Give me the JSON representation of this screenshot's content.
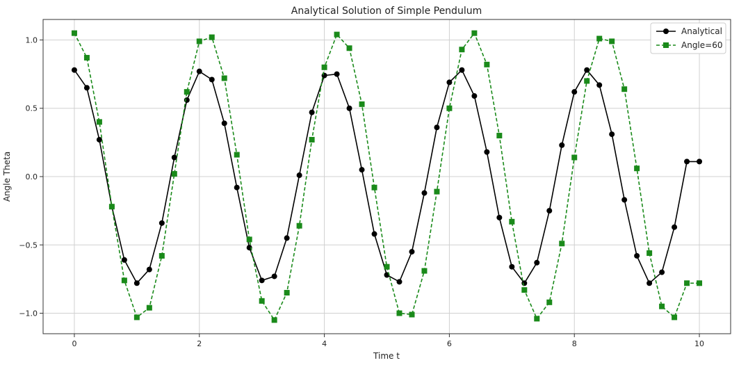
{
  "chart_data": {
    "type": "line",
    "title": "Analytical Solution of Simple Pendulum",
    "xlabel": "Time t",
    "ylabel": "Angle Theta",
    "xlim": [
      -0.5,
      10.5
    ],
    "ylim": [
      -1.15,
      1.15
    ],
    "xticks": [
      0,
      2,
      4,
      6,
      8,
      10
    ],
    "xtick_labels": [
      "0",
      "2",
      "4",
      "6",
      "8",
      "10"
    ],
    "yticks": [
      1.0,
      0.5,
      0.0,
      -0.5,
      -1.0
    ],
    "ytick_labels": [
      "1.0",
      "0.5",
      "0.0",
      "−0.5",
      "−1.0"
    ],
    "grid": true,
    "legend_position": "top-right",
    "series": [
      {
        "name": "Analytical",
        "color": "#000000",
        "line_style": "solid",
        "marker": "circle",
        "x": [
          0.0,
          0.2,
          0.4,
          0.6,
          0.8,
          1.0,
          1.2,
          1.4,
          1.6,
          1.8,
          2.0,
          2.2,
          2.4,
          2.6,
          2.8,
          3.0,
          3.2,
          3.4,
          3.6,
          3.8,
          4.0,
          4.2,
          4.4,
          4.6,
          4.8,
          5.0,
          5.2,
          5.4,
          5.6,
          5.8,
          6.0,
          6.2,
          6.4,
          6.6,
          6.8,
          7.0,
          7.2,
          7.4,
          7.6,
          7.8,
          8.0,
          8.2,
          8.4,
          8.6,
          8.8,
          9.0,
          9.2,
          9.4,
          9.6,
          9.8,
          10.0
        ],
        "y": [
          0.78,
          0.65,
          0.27,
          -0.22,
          -0.61,
          -0.78,
          -0.68,
          -0.34,
          0.14,
          0.56,
          0.77,
          0.71,
          0.39,
          -0.08,
          -0.52,
          -0.76,
          -0.73,
          -0.45,
          0.01,
          0.47,
          0.74,
          0.75,
          0.5,
          0.05,
          -0.42,
          -0.72,
          -0.77,
          -0.55,
          -0.12,
          0.36,
          0.69,
          0.78,
          0.59,
          0.18,
          -0.3,
          -0.66,
          -0.78,
          -0.63,
          -0.25,
          0.23,
          0.62,
          0.78,
          0.67,
          0.31,
          -0.17,
          -0.58,
          -0.78,
          -0.7,
          -0.37,
          0.11,
          0.11
        ]
      },
      {
        "name": "Angle=60",
        "color": "#1a8a1a",
        "line_style": "dashed",
        "marker": "square",
        "x": [
          0.0,
          0.2,
          0.4,
          0.6,
          0.8,
          1.0,
          1.2,
          1.4,
          1.6,
          1.8,
          2.0,
          2.2,
          2.4,
          2.6,
          2.8,
          3.0,
          3.2,
          3.4,
          3.6,
          3.8,
          4.0,
          4.2,
          4.4,
          4.6,
          4.8,
          5.0,
          5.2,
          5.4,
          5.6,
          5.8,
          6.0,
          6.2,
          6.4,
          6.6,
          6.8,
          7.0,
          7.2,
          7.4,
          7.6,
          7.8,
          8.0,
          8.2,
          8.4,
          8.6,
          8.8,
          9.0,
          9.2,
          9.4,
          9.6,
          9.8,
          10.0
        ],
        "y": [
          1.05,
          0.87,
          0.4,
          -0.22,
          -0.76,
          -1.03,
          -0.96,
          -0.58,
          0.02,
          0.62,
          0.99,
          1.02,
          0.72,
          0.16,
          -0.46,
          -0.91,
          -1.05,
          -0.85,
          -0.36,
          0.27,
          0.8,
          1.04,
          0.94,
          0.53,
          -0.08,
          -0.66,
          -1.0,
          -1.01,
          -0.69,
          -0.11,
          0.5,
          0.93,
          1.05,
          0.82,
          0.3,
          -0.33,
          -0.83,
          -1.04,
          -0.92,
          -0.49,
          0.14,
          0.7,
          1.01,
          0.99,
          0.64,
          0.06,
          -0.56,
          -0.95,
          -1.03,
          -0.78,
          -0.78
        ]
      }
    ]
  }
}
